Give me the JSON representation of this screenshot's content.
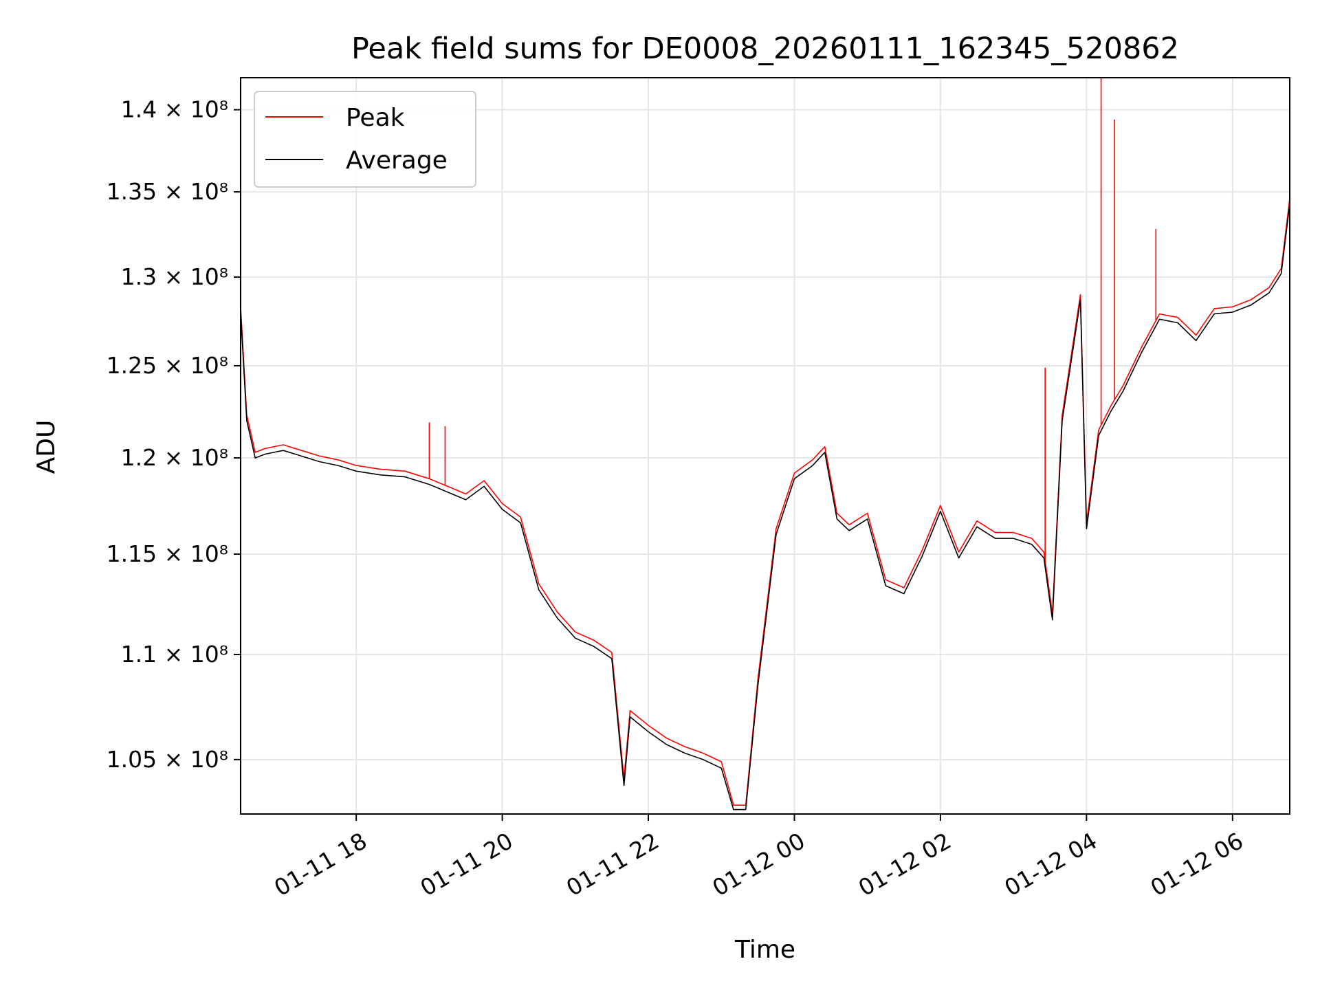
{
  "chart_data": {
    "type": "line",
    "title": "Peak field sums for DE0008_20260111_162345_520862",
    "xlabel": "Time",
    "ylabel": "ADU",
    "y_scale": "log",
    "grid": true,
    "legend_position": "top-left",
    "xlim": [
      "2026-01-11 16:25",
      "2026-01-12 06:47"
    ],
    "ylim": [
      102500000,
      142000000
    ],
    "x_ticks": [
      {
        "value": "2026-01-11 18:00",
        "label": "01-11 18"
      },
      {
        "value": "2026-01-11 20:00",
        "label": "01-11 20"
      },
      {
        "value": "2026-01-11 22:00",
        "label": "01-11 22"
      },
      {
        "value": "2026-01-12 00:00",
        "label": "01-12 00"
      },
      {
        "value": "2026-01-12 02:00",
        "label": "01-12 02"
      },
      {
        "value": "2026-01-12 04:00",
        "label": "01-12 04"
      },
      {
        "value": "2026-01-12 06:00",
        "label": "01-12 06"
      }
    ],
    "y_ticks": [
      {
        "value": 105000000,
        "label": "1.05 × 10⁸"
      },
      {
        "value": 110000000,
        "label": "1.1 × 10⁸"
      },
      {
        "value": 115000000,
        "label": "1.15 × 10⁸"
      },
      {
        "value": 120000000,
        "label": "1.2 × 10⁸"
      },
      {
        "value": 125000000,
        "label": "1.25 × 10⁸"
      },
      {
        "value": 130000000,
        "label": "1.3 × 10⁸"
      },
      {
        "value": 135000000,
        "label": "1.35 × 10⁸"
      },
      {
        "value": 140000000,
        "label": "1.4 × 10⁸"
      }
    ],
    "series": [
      {
        "name": "Average",
        "color": "#000000",
        "x": [
          "2026-01-11 16:25",
          "2026-01-11 16:30",
          "2026-01-11 16:37",
          "2026-01-11 16:45",
          "2026-01-11 17:00",
          "2026-01-11 17:15",
          "2026-01-11 17:30",
          "2026-01-11 17:45",
          "2026-01-11 18:00",
          "2026-01-11 18:20",
          "2026-01-11 18:40",
          "2026-01-11 19:00",
          "2026-01-11 19:15",
          "2026-01-11 19:30",
          "2026-01-11 19:45",
          "2026-01-11 20:00",
          "2026-01-11 20:15",
          "2026-01-11 20:30",
          "2026-01-11 20:45",
          "2026-01-11 21:00",
          "2026-01-11 21:15",
          "2026-01-11 21:30",
          "2026-01-11 21:40",
          "2026-01-11 21:45",
          "2026-01-11 22:00",
          "2026-01-11 22:15",
          "2026-01-11 22:30",
          "2026-01-11 22:45",
          "2026-01-11 23:00",
          "2026-01-11 23:10",
          "2026-01-11 23:20",
          "2026-01-11 23:30",
          "2026-01-11 23:45",
          "2026-01-12 00:00",
          "2026-01-12 00:15",
          "2026-01-12 00:25",
          "2026-01-12 00:35",
          "2026-01-12 00:45",
          "2026-01-12 01:00",
          "2026-01-12 01:15",
          "2026-01-12 01:30",
          "2026-01-12 01:45",
          "2026-01-12 02:00",
          "2026-01-12 02:15",
          "2026-01-12 02:30",
          "2026-01-12 02:45",
          "2026-01-12 03:00",
          "2026-01-12 03:15",
          "2026-01-12 03:25",
          "2026-01-12 03:32",
          "2026-01-12 03:40",
          "2026-01-12 03:48",
          "2026-01-12 03:55",
          "2026-01-12 04:00",
          "2026-01-12 04:10",
          "2026-01-12 04:20",
          "2026-01-12 04:30",
          "2026-01-12 04:45",
          "2026-01-12 05:00",
          "2026-01-12 05:15",
          "2026-01-12 05:30",
          "2026-01-12 05:45",
          "2026-01-12 06:00",
          "2026-01-12 06:15",
          "2026-01-12 06:30",
          "2026-01-12 06:40",
          "2026-01-12 06:47"
        ],
        "values": [
          128000000,
          122000000,
          120000000,
          120200000,
          120400000,
          120100000,
          119800000,
          119600000,
          119300000,
          119100000,
          119000000,
          118600000,
          118200000,
          117800000,
          118500000,
          117300000,
          116600000,
          113200000,
          111800000,
          110800000,
          110400000,
          109800000,
          103800000,
          107000000,
          106300000,
          105700000,
          105300000,
          105000000,
          104600000,
          102700000,
          102700000,
          108500000,
          116000000,
          118900000,
          119600000,
          120300000,
          116800000,
          116200000,
          116800000,
          113400000,
          113000000,
          114900000,
          117200000,
          114800000,
          116400000,
          115800000,
          115800000,
          115500000,
          114800000,
          111700000,
          122000000,
          125500000,
          128700000,
          116300000,
          121200000,
          122500000,
          123600000,
          125700000,
          127600000,
          127400000,
          126400000,
          127900000,
          128000000,
          128400000,
          129100000,
          130200000,
          134300000
        ]
      },
      {
        "name": "Peak",
        "color": "#ff0000",
        "x": [
          "2026-01-11 16:25",
          "2026-01-11 16:30",
          "2026-01-11 16:37",
          "2026-01-11 16:45",
          "2026-01-11 17:00",
          "2026-01-11 17:15",
          "2026-01-11 17:30",
          "2026-01-11 17:45",
          "2026-01-11 18:00",
          "2026-01-11 18:20",
          "2026-01-11 18:40",
          "2026-01-11 19:00",
          "2026-01-11 19:15",
          "2026-01-11 19:30",
          "2026-01-11 19:45",
          "2026-01-11 20:00",
          "2026-01-11 20:15",
          "2026-01-11 20:30",
          "2026-01-11 20:45",
          "2026-01-11 21:00",
          "2026-01-11 21:15",
          "2026-01-11 21:30",
          "2026-01-11 21:40",
          "2026-01-11 21:45",
          "2026-01-11 22:00",
          "2026-01-11 22:15",
          "2026-01-11 22:30",
          "2026-01-11 22:45",
          "2026-01-11 23:00",
          "2026-01-11 23:10",
          "2026-01-11 23:20",
          "2026-01-11 23:30",
          "2026-01-11 23:45",
          "2026-01-12 00:00",
          "2026-01-12 00:15",
          "2026-01-12 00:25",
          "2026-01-12 00:35",
          "2026-01-12 00:45",
          "2026-01-12 01:00",
          "2026-01-12 01:15",
          "2026-01-12 01:30",
          "2026-01-12 01:45",
          "2026-01-12 02:00",
          "2026-01-12 02:15",
          "2026-01-12 02:30",
          "2026-01-12 02:45",
          "2026-01-12 03:00",
          "2026-01-12 03:15",
          "2026-01-12 03:25",
          "2026-01-12 03:32",
          "2026-01-12 03:40",
          "2026-01-12 03:48",
          "2026-01-12 03:55",
          "2026-01-12 04:00",
          "2026-01-12 04:10",
          "2026-01-12 04:20",
          "2026-01-12 04:30",
          "2026-01-12 04:45",
          "2026-01-12 05:00",
          "2026-01-12 05:15",
          "2026-01-12 05:30",
          "2026-01-12 05:45",
          "2026-01-12 06:00",
          "2026-01-12 06:15",
          "2026-01-12 06:30",
          "2026-01-12 06:40",
          "2026-01-12 06:47"
        ],
        "values": [
          128300000,
          122300000,
          120300000,
          120500000,
          120700000,
          120400000,
          120100000,
          119900000,
          119600000,
          119400000,
          119300000,
          118900000,
          118500000,
          118100000,
          118800000,
          117600000,
          116900000,
          113500000,
          112100000,
          111100000,
          110700000,
          110100000,
          104100000,
          107300000,
          106600000,
          106000000,
          105600000,
          105300000,
          104900000,
          102900000,
          102900000,
          108800000,
          116300000,
          119200000,
          119900000,
          120600000,
          117100000,
          116500000,
          117100000,
          113700000,
          113300000,
          115200000,
          117500000,
          115100000,
          116700000,
          116100000,
          116100000,
          115800000,
          115100000,
          112000000,
          122300000,
          125800000,
          129000000,
          116600000,
          121500000,
          122800000,
          123900000,
          126000000,
          127900000,
          127700000,
          126700000,
          128200000,
          128300000,
          128700000,
          129400000,
          130500000,
          134600000
        ],
        "spikes": [
          {
            "x": "2026-01-11 19:00",
            "value": 121900000
          },
          {
            "x": "2026-01-11 19:13",
            "value": 121700000
          },
          {
            "x": "2026-01-12 03:26",
            "value": 124900000
          },
          {
            "x": "2026-01-12 04:12",
            "value": 142000000
          },
          {
            "x": "2026-01-12 04:23",
            "value": 139400000
          },
          {
            "x": "2026-01-12 04:57",
            "value": 132800000
          }
        ]
      }
    ],
    "legend": [
      {
        "label": "Peak",
        "color": "#ff0000"
      },
      {
        "label": "Average",
        "color": "#000000"
      }
    ]
  }
}
